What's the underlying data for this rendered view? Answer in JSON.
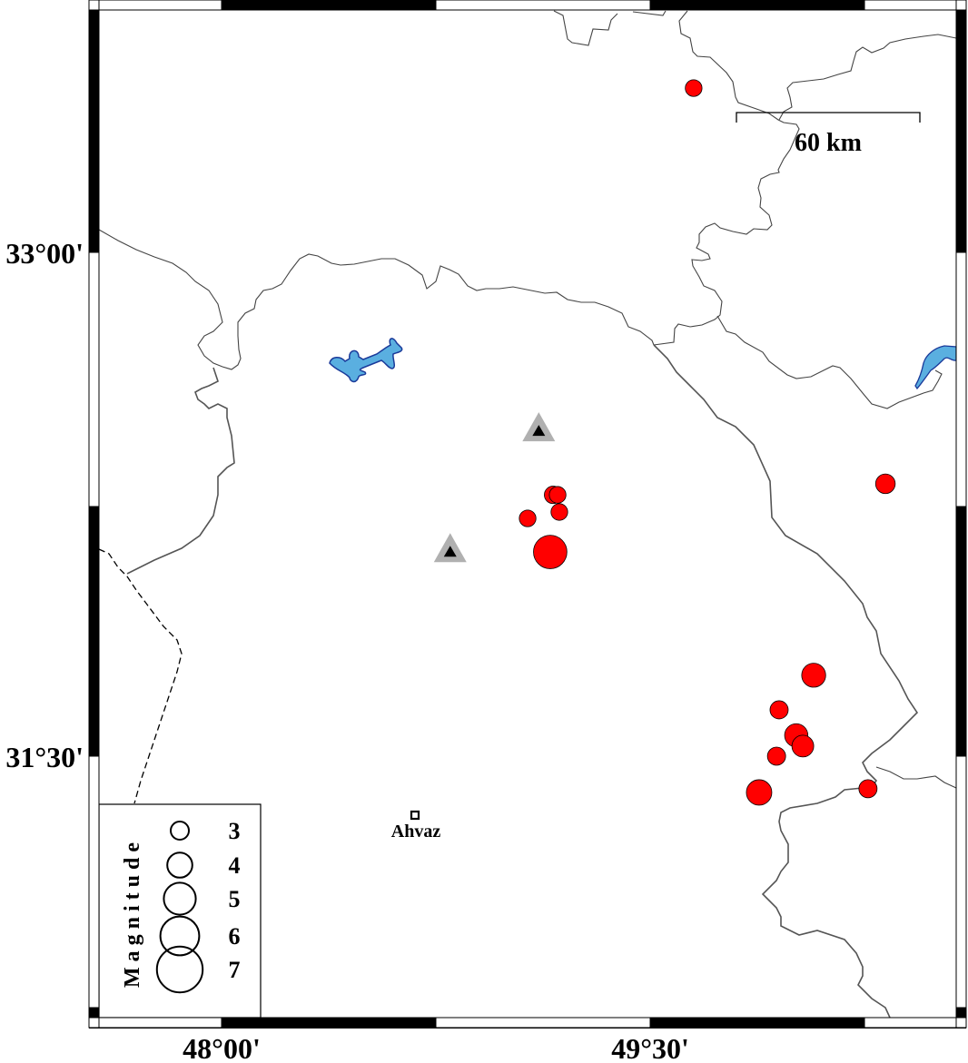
{
  "map": {
    "lon_range": [
      47.55,
      50.55
    ],
    "lat_range": [
      30.55,
      33.73
    ],
    "lon_ticks": [
      {
        "value": 48.0,
        "label": "48°00'"
      },
      {
        "value": 49.5,
        "label": "49°30'"
      }
    ],
    "lat_ticks": [
      {
        "value": 33.0,
        "label": "33°00'"
      },
      {
        "value": 31.5,
        "label": "31°30'"
      }
    ],
    "land_color": "#ffffff",
    "water_color": "#5aafe0",
    "event_color": "#ff0000",
    "station_color": "#b0b0b0"
  },
  "scale_bar": {
    "label": "60 km"
  },
  "cities": [
    {
      "name": "Ahvaz",
      "lon": 48.68,
      "lat": 31.32
    }
  ],
  "stations": [
    {
      "lon": 49.11,
      "lat": 32.47
    },
    {
      "lon": 48.8,
      "lat": 32.11
    }
  ],
  "events": [
    {
      "lon": 49.652,
      "lat": 33.489,
      "mag": 2.8
    },
    {
      "lon": 50.323,
      "lat": 32.311,
      "mag": 3.2
    },
    {
      "lon": 49.16,
      "lat": 32.278,
      "mag": 2.9
    },
    {
      "lon": 49.176,
      "lat": 32.278,
      "mag": 2.8
    },
    {
      "lon": 49.182,
      "lat": 32.227,
      "mag": 2.8
    },
    {
      "lon": 49.071,
      "lat": 32.208,
      "mag": 2.8
    },
    {
      "lon": 49.15,
      "lat": 32.108,
      "mag": 5.1
    },
    {
      "lon": 50.072,
      "lat": 31.741,
      "mag": 3.8
    },
    {
      "lon": 49.951,
      "lat": 31.638,
      "mag": 3.0
    },
    {
      "lon": 50.011,
      "lat": 31.562,
      "mag": 3.7
    },
    {
      "lon": 50.034,
      "lat": 31.53,
      "mag": 3.5
    },
    {
      "lon": 49.942,
      "lat": 31.5,
      "mag": 3.0
    },
    {
      "lon": 49.881,
      "lat": 31.392,
      "mag": 4.0
    },
    {
      "lon": 50.262,
      "lat": 31.403,
      "mag": 3.0
    }
  ],
  "legend": {
    "title": "Magnitude",
    "items": [
      {
        "mag": 3,
        "label": "3"
      },
      {
        "mag": 4,
        "label": "4"
      },
      {
        "mag": 5,
        "label": "5"
      },
      {
        "mag": 6,
        "label": "6"
      },
      {
        "mag": 7,
        "label": "7"
      }
    ]
  }
}
